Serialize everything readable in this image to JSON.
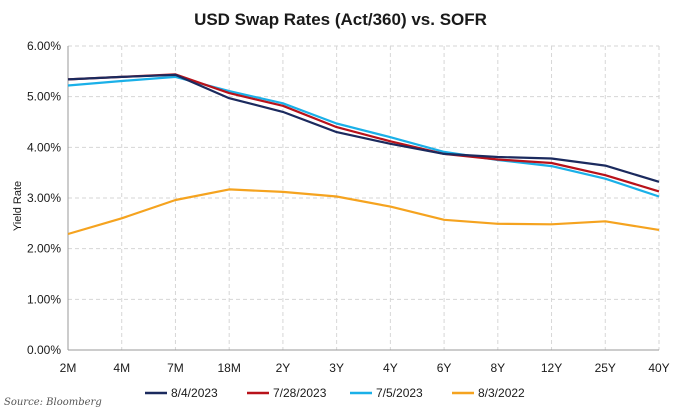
{
  "chart_data": {
    "type": "line",
    "title": "USD Swap Rates (Act/360) vs. SOFR",
    "ylabel": "Yield Rate",
    "xlabel": "",
    "categories": [
      "2M",
      "4M",
      "7M",
      "18M",
      "2Y",
      "3Y",
      "4Y",
      "6Y",
      "8Y",
      "12Y",
      "25Y",
      "40Y"
    ],
    "y_ticks": [
      "0.00%",
      "1.00%",
      "2.00%",
      "3.00%",
      "4.00%",
      "5.00%",
      "6.00%"
    ],
    "ylim": [
      0,
      6
    ],
    "grid": true,
    "legend_position": "bottom",
    "series": [
      {
        "name": "8/4/2023",
        "color": "#1b2a5e",
        "values": [
          5.34,
          5.39,
          5.43,
          4.97,
          4.7,
          4.3,
          4.07,
          3.87,
          3.81,
          3.78,
          3.64,
          3.32
        ]
      },
      {
        "name": "7/28/2023",
        "color": "#b8121a",
        "values": [
          5.34,
          5.39,
          5.44,
          5.07,
          4.82,
          4.4,
          4.12,
          3.87,
          3.76,
          3.69,
          3.45,
          3.13
        ]
      },
      {
        "name": "7/5/2023",
        "color": "#1ab0e8",
        "values": [
          5.22,
          5.31,
          5.39,
          5.11,
          4.87,
          4.47,
          4.2,
          3.91,
          3.75,
          3.63,
          3.38,
          3.03
        ]
      },
      {
        "name": "8/3/2022",
        "color": "#f5a31f",
        "values": [
          2.29,
          2.6,
          2.96,
          3.17,
          3.12,
          3.03,
          2.83,
          2.57,
          2.49,
          2.48,
          2.54,
          2.37
        ]
      }
    ]
  },
  "source": "Source: Bloomberg"
}
